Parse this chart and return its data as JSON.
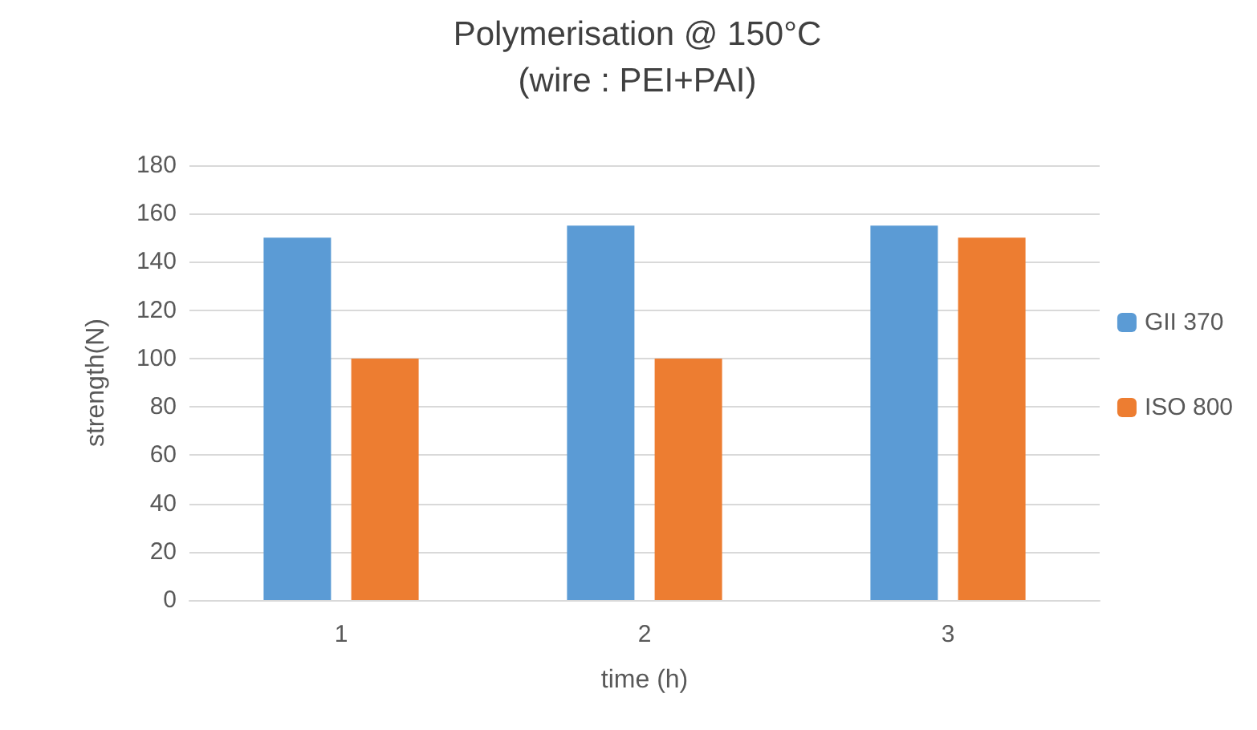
{
  "chart_data": {
    "type": "bar",
    "title": "Polymerisation @ 150°C",
    "subtitle": "(wire : PEI+PAI)",
    "xlabel": "time (h)",
    "ylabel": "strength(N)",
    "categories": [
      "1",
      "2",
      "3"
    ],
    "series": [
      {
        "name": "GII 370",
        "color": "#5b9bd5",
        "values": [
          150,
          155,
          155
        ]
      },
      {
        "name": "ISO 800",
        "color": "#ed7d31",
        "values": [
          100,
          100,
          150
        ]
      }
    ],
    "ylim": [
      0,
      180
    ],
    "yticks": [
      0,
      20,
      40,
      60,
      80,
      100,
      120,
      140,
      160,
      180
    ],
    "grid": "y",
    "legend": "right"
  }
}
